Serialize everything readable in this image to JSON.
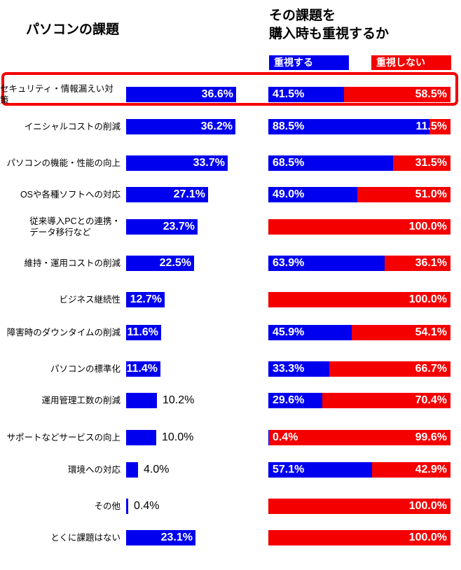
{
  "chart_data": {
    "type": "bar",
    "title_left": "パソコンの課題",
    "title_right_line1": "その課題を",
    "title_right_line2": "購入時も重視するか",
    "legend": [
      {
        "label": "重視する",
        "color": "#0000EE"
      },
      {
        "label": "重視しない",
        "color": "#F40000"
      }
    ],
    "legend_position": "top-right",
    "grid": false,
    "value_labels": true,
    "left_axis_range": [
      0,
      42
    ],
    "right_axis_range": [
      0,
      100
    ],
    "rows": [
      {
        "label": "セキュリティ・情報漏えい対策",
        "issue_pct": 36.6,
        "consider_yes": 41.5,
        "consider_no": 58.5,
        "highlighted": true
      },
      {
        "label": "イニシャルコストの削減",
        "issue_pct": 36.2,
        "consider_yes": 88.5,
        "consider_no": 11.5,
        "highlighted": false
      },
      {
        "label": "パソコンの機能・性能の向上",
        "issue_pct": 33.7,
        "consider_yes": 68.5,
        "consider_no": 31.5,
        "highlighted": false
      },
      {
        "label": "OSや各種ソフトへの対応",
        "issue_pct": 27.1,
        "consider_yes": 49.0,
        "consider_no": 51.0,
        "highlighted": false
      },
      {
        "label": "従来導入PCとの連携・\nデータ移行など",
        "issue_pct": 23.7,
        "consider_yes": null,
        "consider_no": 100.0,
        "highlighted": false
      },
      {
        "label": "維持・運用コストの削減",
        "issue_pct": 22.5,
        "consider_yes": 63.9,
        "consider_no": 36.1,
        "highlighted": false
      },
      {
        "label": "ビジネス継続性",
        "issue_pct": 12.7,
        "consider_yes": null,
        "consider_no": 100.0,
        "highlighted": false
      },
      {
        "label": "障害時のダウンタイムの削減",
        "issue_pct": 11.6,
        "consider_yes": 45.9,
        "consider_no": 54.1,
        "highlighted": false
      },
      {
        "label": "パソコンの標準化",
        "issue_pct": 11.4,
        "consider_yes": 33.3,
        "consider_no": 66.7,
        "highlighted": false
      },
      {
        "label": "運用管理工数の削減",
        "issue_pct": 10.2,
        "consider_yes": 29.6,
        "consider_no": 70.4,
        "highlighted": false
      },
      {
        "label": "サポートなどサービスの向上",
        "issue_pct": 10.0,
        "consider_yes": 0.4,
        "consider_no": 99.6,
        "highlighted": false
      },
      {
        "label": "環境への対応",
        "issue_pct": 4.0,
        "consider_yes": 57.1,
        "consider_no": 42.9,
        "highlighted": false
      },
      {
        "label": "その他",
        "issue_pct": 0.4,
        "consider_yes": null,
        "consider_no": 100.0,
        "highlighted": false
      },
      {
        "label": "とくに課題はない",
        "issue_pct": 23.1,
        "consider_yes": null,
        "consider_no": 100.0,
        "highlighted": false
      }
    ]
  }
}
